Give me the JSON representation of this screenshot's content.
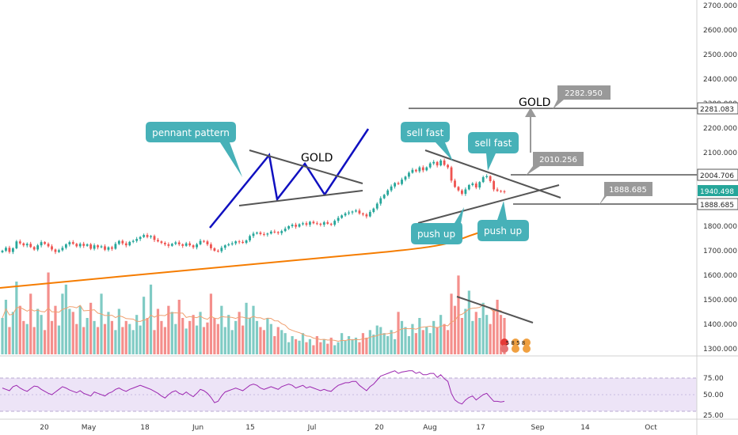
{
  "colors": {
    "up": "#26a69a",
    "down": "#ef5350",
    "vol_up": "#80cbc4",
    "vol_down": "#f48f8c",
    "ma200": "#f57c00",
    "vol_ma": "#f0a070",
    "rsi_line": "#9c27b0",
    "rsi_band": "#ede4f7",
    "pennant_blue": "#1010c0",
    "trend_gray": "#555555",
    "callout_teal": "#47b1b8",
    "gray_label": "#999999",
    "last_price": "#26a69a"
  },
  "price_axis": {
    "ticks": [
      "2700.000",
      "2600.000",
      "2500.000",
      "2400.000",
      "2300.000",
      "2200.000",
      "2100.000",
      "2000.000",
      "1900.000",
      "1800.000",
      "1700.000",
      "1600.000",
      "1500.000",
      "1400.000",
      "1300.000"
    ]
  },
  "rsi_axis": {
    "ticks": [
      "75.00",
      "50.00",
      "25.00"
    ]
  },
  "time_axis": {
    "ticks": [
      "20",
      "May",
      "18",
      "Jun",
      "15",
      "Jul",
      "20",
      "Aug",
      "17",
      "Sep",
      "14",
      "Oct"
    ]
  },
  "price_tags": [
    {
      "id": "tag-2281",
      "label": "2281.083",
      "style": "outline"
    },
    {
      "id": "tag-2004",
      "label": "2004.706",
      "style": "outline"
    },
    {
      "id": "tag-1940",
      "label": "1940.498",
      "style": "filled"
    },
    {
      "id": "tag-1888",
      "label": "1888.685",
      "style": "outline"
    }
  ],
  "annotations": {
    "pennant_label": "pennant pattern",
    "gold_small": "GOLD",
    "gold_large": "GOLD",
    "sell_fast_1": "sell fast",
    "sell_fast_2": "sell fast",
    "push_up_1": "push up",
    "push_up_2": "push up",
    "target_2282": "2282.950",
    "target_2010": "2010.256",
    "target_1888": "1888.685",
    "event_badge": "5 8 5 8"
  },
  "chart_data": {
    "type": "candlestick",
    "title": "",
    "xlabel": "",
    "ylabel": "",
    "ylim": [
      1270,
      2720
    ],
    "grid": false,
    "legend": "none",
    "x_ticks": [
      "20",
      "May",
      "18",
      "Jun",
      "15",
      "Jul",
      "20",
      "Aug",
      "17",
      "Sep",
      "14",
      "Oct"
    ],
    "y_ticks": [
      2700,
      2600,
      2500,
      2400,
      2300,
      2200,
      2100,
      2000,
      1900,
      1800,
      1700,
      1600,
      1500,
      1400,
      1300
    ],
    "price_levels": [
      2281.083,
      2004.706,
      1940.498,
      1888.685
    ],
    "targets": [
      2282.95,
      2010.256,
      1888.685
    ],
    "closes": [
      1700,
      1712,
      1695,
      1710,
      1738,
      1730,
      1722,
      1728,
      1715,
      1705,
      1722,
      1735,
      1728,
      1718,
      1705,
      1695,
      1702,
      1712,
      1726,
      1735,
      1728,
      1718,
      1728,
      1720,
      1726,
      1708,
      1722,
      1714,
      1718,
      1704,
      1714,
      1708,
      1728,
      1740,
      1730,
      1722,
      1736,
      1740,
      1748,
      1756,
      1764,
      1756,
      1760,
      1744,
      1738,
      1732,
      1726,
      1720,
      1728,
      1734,
      1726,
      1720,
      1730,
      1722,
      1714,
      1726,
      1740,
      1738,
      1726,
      1710,
      1700,
      1698,
      1712,
      1722,
      1726,
      1730,
      1738,
      1736,
      1732,
      1742,
      1760,
      1770,
      1774,
      1768,
      1766,
      1770,
      1778,
      1776,
      1772,
      1780,
      1790,
      1800,
      1806,
      1798,
      1808,
      1812,
      1806,
      1818,
      1812,
      1810,
      1806,
      1816,
      1810,
      1806,
      1822,
      1834,
      1844,
      1852,
      1856,
      1860,
      1864,
      1852,
      1848,
      1840,
      1858,
      1872,
      1892,
      1914,
      1928,
      1946,
      1962,
      1976,
      1972,
      1990,
      2002,
      2018,
      2030,
      2024,
      2040,
      2028,
      2040,
      2056,
      2062,
      2048,
      2068,
      2050,
      2040,
      1986,
      1960,
      1946,
      1932,
      1950,
      1968,
      1974,
      1958,
      1980,
      2000,
      2004,
      1984,
      1950,
      1944,
      1942,
      1940
    ],
    "volume": [
      120,
      180,
      90,
      140,
      240,
      160,
      110,
      100,
      200,
      90,
      150,
      130,
      80,
      270,
      110,
      160,
      95,
      200,
      230,
      150,
      140,
      100,
      160,
      90,
      120,
      170,
      110,
      90,
      200,
      100,
      140,
      110,
      80,
      150,
      90,
      110,
      100,
      80,
      130,
      95,
      190,
      120,
      230,
      80,
      150,
      110,
      90,
      160,
      140,
      100,
      180,
      120,
      85,
      110,
      130,
      95,
      140,
      90,
      105,
      200,
      120,
      100,
      160,
      90,
      130,
      80,
      110,
      140,
      95,
      170,
      120,
      160,
      110,
      90,
      80,
      120,
      100,
      60,
      90,
      80,
      70,
      40,
      60,
      50,
      45,
      70,
      40,
      50,
      30,
      60,
      40,
      50,
      35,
      55,
      30,
      40,
      70,
      45,
      60,
      50,
      55,
      40,
      70,
      55,
      80,
      65,
      95,
      90,
      70,
      60,
      80,
      50,
      140,
      110,
      90,
      60,
      100,
      70,
      120,
      80,
      90,
      70,
      110,
      90,
      130,
      100,
      80,
      200,
      160,
      260,
      120,
      150,
      210,
      110,
      140,
      120,
      170,
      130,
      100,
      150,
      180,
      130,
      120
    ],
    "rsi": [
      60,
      58,
      56,
      62,
      64,
      60,
      57,
      55,
      59,
      63,
      62,
      58,
      55,
      52,
      50,
      54,
      58,
      62,
      60,
      57,
      55,
      53,
      56,
      52,
      50,
      48,
      54,
      52,
      50,
      48,
      52,
      54,
      58,
      60,
      57,
      55,
      58,
      60,
      62,
      64,
      62,
      60,
      58,
      55,
      52,
      48,
      45,
      50,
      54,
      56,
      52,
      50,
      54,
      50,
      47,
      52,
      58,
      56,
      52,
      46,
      38,
      40,
      48,
      54,
      56,
      58,
      60,
      58,
      56,
      60,
      64,
      66,
      64,
      60,
      58,
      60,
      62,
      60,
      58,
      62,
      64,
      66,
      64,
      60,
      62,
      64,
      60,
      62,
      60,
      58,
      56,
      58,
      56,
      55,
      60,
      64,
      66,
      68,
      68,
      70,
      70,
      64,
      60,
      56,
      62,
      66,
      72,
      78,
      80,
      82,
      84,
      86,
      82,
      84,
      85,
      86,
      86,
      82,
      84,
      80,
      80,
      82,
      82,
      76,
      80,
      74,
      70,
      52,
      42,
      38,
      36,
      42,
      46,
      48,
      42,
      46,
      50,
      52,
      46,
      40,
      40,
      39,
      40
    ]
  }
}
